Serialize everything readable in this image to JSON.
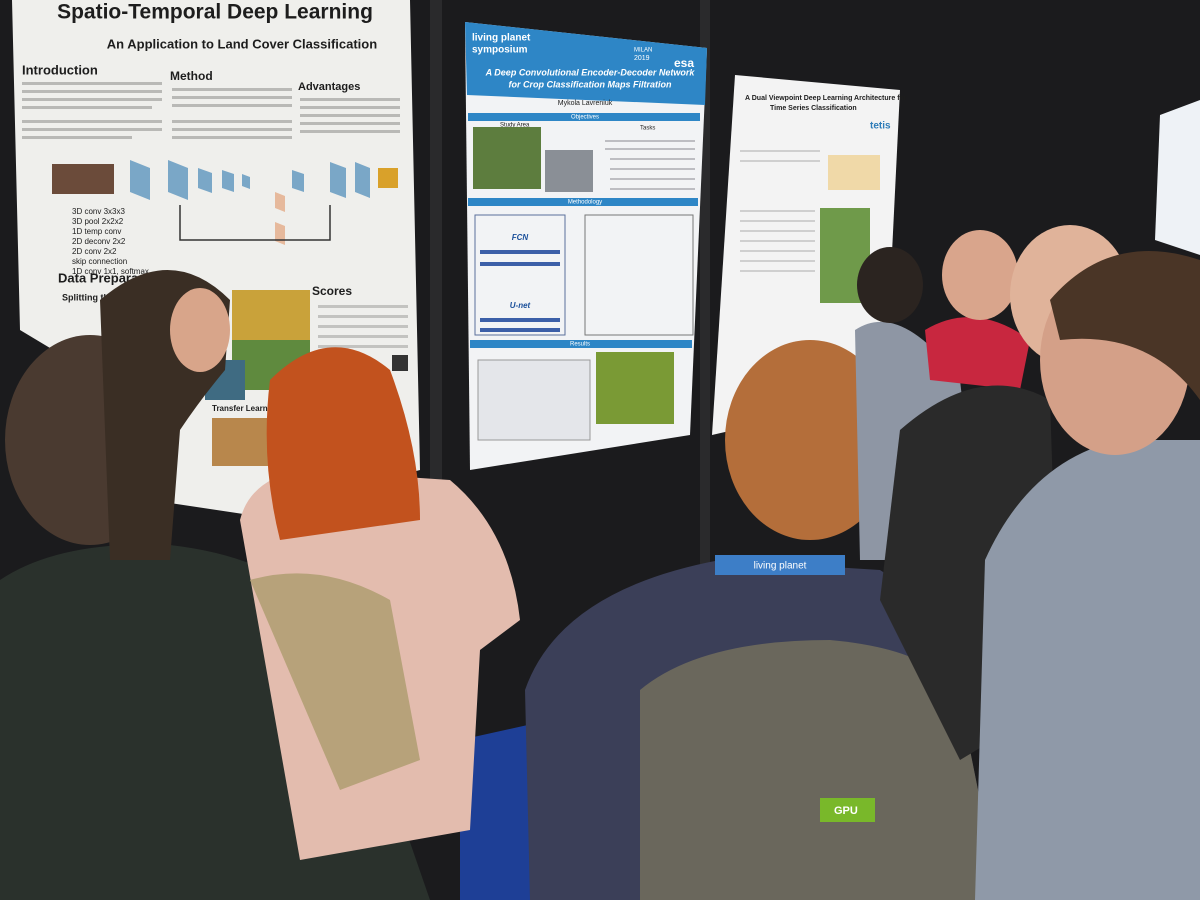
{
  "posters": [
    {
      "title": "Spatio-Temporal Deep Learning",
      "subtitle": "An Application to Land Cover Classification",
      "sections": [
        "Introduction",
        "Method",
        "Advantages",
        "Data Prepara",
        "Splitting the ADI",
        "Scores",
        "Transfer Learning"
      ],
      "legend": [
        "3D conv 3x3x3",
        "3D pool 2x2x2",
        "1D temp conv",
        "2D deconv 2x2",
        "2D conv 2x2",
        "skip connection",
        "1D conv 1x1, softmax"
      ]
    },
    {
      "event": [
        "living planet",
        "symposium"
      ],
      "event_place": [
        "MILAN",
        "2019"
      ],
      "logo": "esa",
      "title": [
        "A Deep Convolutional Encoder-Decoder Network",
        "for Crop Classification Maps Filtration"
      ],
      "author": "Mykola Lavreniuk",
      "sections": [
        "Objectives",
        "Study Area",
        "Tasks",
        "Methodology",
        "Results"
      ],
      "networks": [
        "FCN",
        "U-net"
      ]
    },
    {
      "title": [
        "A Dual Viewpoint Deep Learning Architecture for",
        "Time Series Classification"
      ],
      "logo": "tetis"
    }
  ],
  "lanyard": "living planet",
  "bag_patch": "GPU"
}
